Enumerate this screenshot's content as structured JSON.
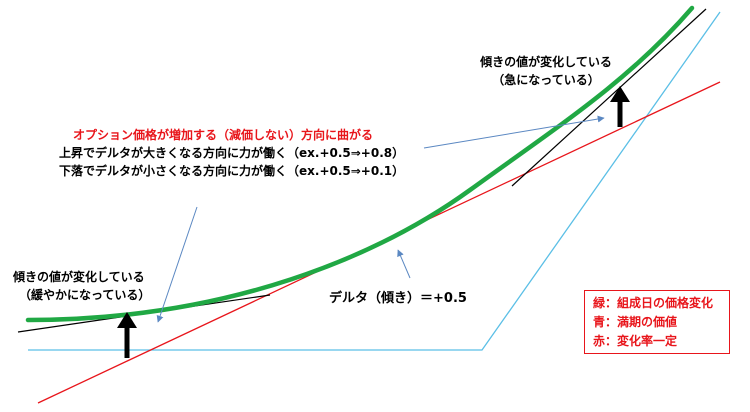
{
  "colors": {
    "green_curve": "#20a844",
    "red_line": "#e8151b",
    "blue_line": "#5bbfe6",
    "tangent": "#000000",
    "pointer": "#5b88c2"
  },
  "labels": {
    "top_right_line1": "傾きの値が変化している",
    "top_right_line2": "（急になっている）",
    "middle_title": "オプション価格が増加する（減価しない）方向に曲がる",
    "middle_line2": "上昇でデルタが大きくなる方向に力が働く（ex.+0.5⇒+0.8）",
    "middle_line3": "下落でデルタが小さくなる方向に力が働く（ex.+0.5⇒+0.1）",
    "left_line1": "傾きの値が変化している",
    "left_line2": "（緩やかになっている）",
    "delta": "デルタ（傾き）＝+0.5"
  },
  "legend": {
    "items": [
      "緑：組成日の価格変化",
      "青：満期の価値",
      "赤：変化率一定"
    ]
  }
}
